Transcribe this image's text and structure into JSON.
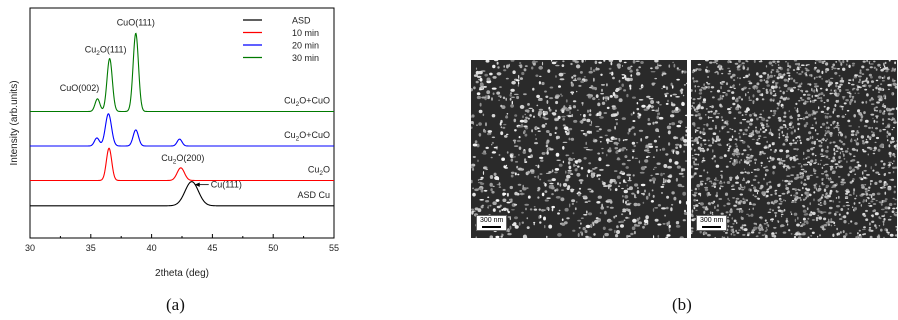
{
  "chart_data": {
    "type": "line",
    "xlabel": "2theta (deg)",
    "ylabel": "Intensity (arb.units)",
    "xlim": [
      30,
      55
    ],
    "xticks": [
      30,
      35,
      40,
      45,
      50,
      55
    ],
    "ylim": [
      0,
      10
    ],
    "grid": false,
    "legend": {
      "placement": "top-right",
      "entries": [
        {
          "name": "ASD",
          "color": "#000000"
        },
        {
          "name": "10 min",
          "color": "#ff0000"
        },
        {
          "name": "20 min",
          "color": "#0000ff"
        },
        {
          "name": "30 min",
          "color": "#007a00"
        }
      ]
    },
    "series": [
      {
        "name": "ASD",
        "color": "#000000",
        "baseline": 1.4,
        "peaks": [
          {
            "x": 43.3,
            "h": 1.05,
            "w": 0.55
          }
        ]
      },
      {
        "name": "10 min",
        "color": "#ff0000",
        "baseline": 2.5,
        "peaks": [
          {
            "x": 36.5,
            "h": 1.4,
            "w": 0.22
          },
          {
            "x": 42.4,
            "h": 0.55,
            "w": 0.3
          }
        ]
      },
      {
        "name": "20 min",
        "color": "#0000ff",
        "baseline": 4.0,
        "peaks": [
          {
            "x": 35.5,
            "h": 0.35,
            "w": 0.2
          },
          {
            "x": 36.45,
            "h": 1.4,
            "w": 0.25
          },
          {
            "x": 38.7,
            "h": 0.7,
            "w": 0.22
          },
          {
            "x": 42.3,
            "h": 0.3,
            "w": 0.2
          }
        ]
      },
      {
        "name": "30 min",
        "color": "#007a00",
        "baseline": 5.5,
        "peaks": [
          {
            "x": 35.55,
            "h": 0.55,
            "w": 0.2
          },
          {
            "x": 36.55,
            "h": 2.3,
            "w": 0.22
          },
          {
            "x": 38.7,
            "h": 3.4,
            "w": 0.22
          }
        ]
      }
    ],
    "curve_labels": [
      {
        "text": "ASD Cu",
        "series": "ASD"
      },
      {
        "text": "Cu2O",
        "series": "10 min"
      },
      {
        "text": "Cu2O+CuO",
        "series": "20 min"
      },
      {
        "text": "Cu2O+CuO",
        "series": "30 min"
      }
    ],
    "peak_labels": [
      {
        "text": "CuO(111)",
        "x": 38.7
      },
      {
        "text": "Cu2O(111)",
        "x": 36.55
      },
      {
        "text": "CuO(002)",
        "x": 35.55
      },
      {
        "text": "Cu2O(200)",
        "x": 42.4
      },
      {
        "text": "Cu(111)",
        "x": 43.3
      }
    ]
  },
  "figure": {
    "panel_a_label": "(a)",
    "panel_b_label": "(b)",
    "sem_images": [
      {
        "scale_bar": "300 nm"
      },
      {
        "scale_bar": "300 nm"
      }
    ]
  }
}
